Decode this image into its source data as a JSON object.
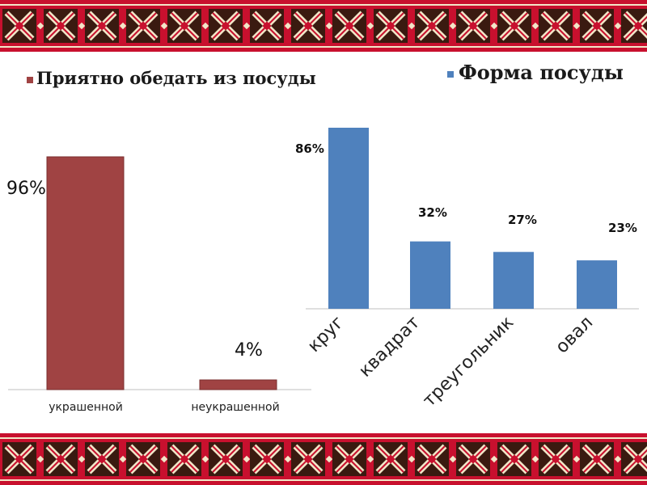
{
  "chart_data": [
    {
      "type": "bar",
      "title": "",
      "categories": [
        "украшенной",
        "неукрашенной"
      ],
      "series": [
        {
          "name": "Приятно обедать из посуды",
          "values": [
            96,
            4
          ],
          "labels": [
            "96%",
            "4%"
          ]
        }
      ],
      "ylim": [
        0,
        100
      ],
      "legend": "top-left",
      "color": "#A04343"
    },
    {
      "type": "bar",
      "title": "",
      "categories": [
        "круг",
        "квадрат",
        "треугольник",
        "овал"
      ],
      "series": [
        {
          "name": "Форма посуды",
          "values": [
            86,
            32,
            27,
            23
          ],
          "labels": [
            "86%",
            "32%",
            "27%",
            "23%"
          ]
        }
      ],
      "ylim": [
        0,
        86
      ],
      "legend": "top-right",
      "color": "#4F81BD"
    }
  ],
  "colors": {
    "border_red": "#C8102E",
    "border_cream": "#F2E6C8",
    "border_dark": "#3A1A10"
  }
}
